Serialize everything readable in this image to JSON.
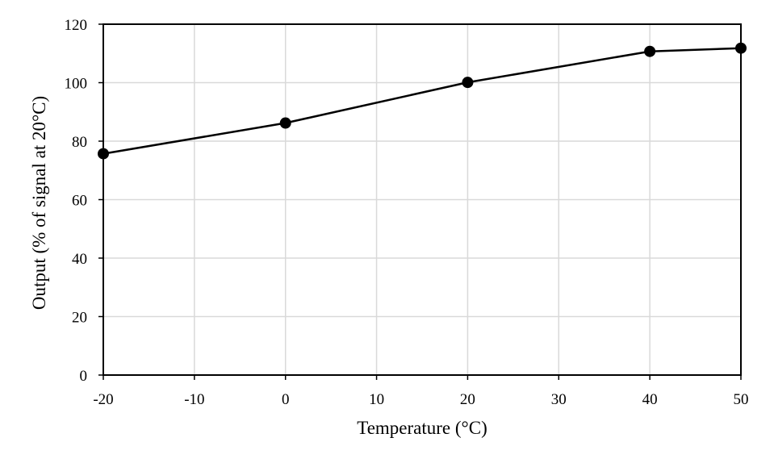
{
  "chart_data": {
    "type": "line",
    "title": "",
    "xlabel": "Temperature (°C)",
    "ylabel": "Output (% of signal at 20°C)",
    "xlim": [
      -20,
      50
    ],
    "ylim": [
      0,
      120
    ],
    "xticks": [
      -20,
      -10,
      0,
      10,
      20,
      30,
      40,
      50
    ],
    "yticks": [
      0,
      20,
      40,
      60,
      80,
      100,
      120
    ],
    "grid": true,
    "legend": "none",
    "series": [
      {
        "x": [
          -20,
          0,
          20,
          40,
          50
        ],
        "y": [
          75.7,
          86.2,
          100.1,
          110.7,
          111.8
        ]
      }
    ],
    "colors": {
      "line": "#000000",
      "marker": "#000000",
      "grid": "#d9d9d9",
      "frame": "#000000"
    }
  }
}
